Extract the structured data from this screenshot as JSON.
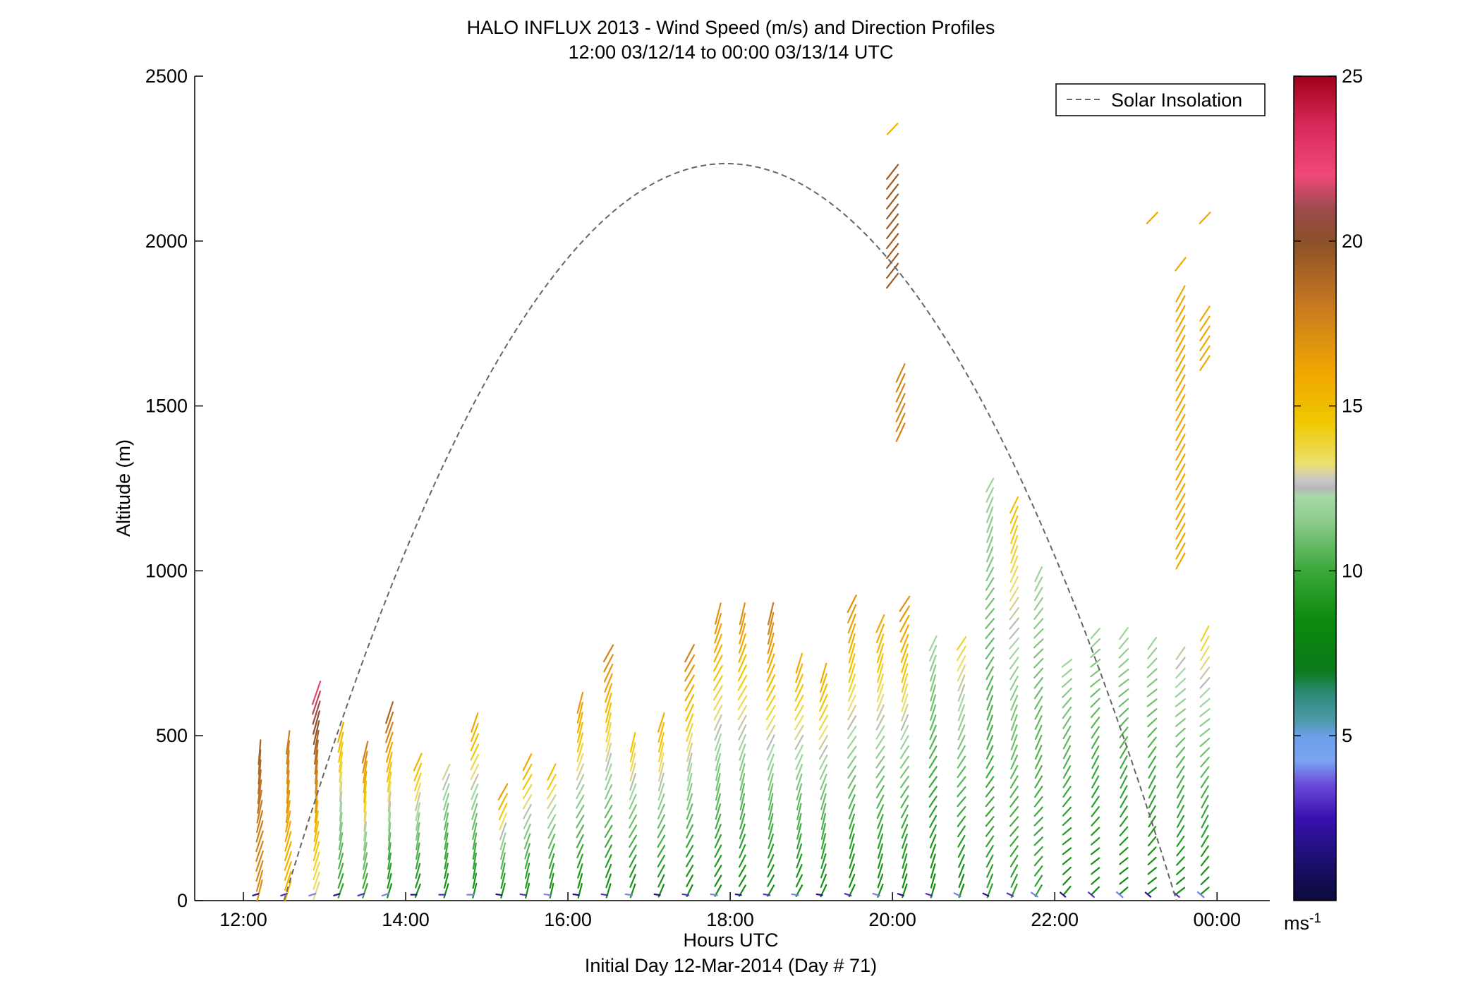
{
  "chart_data": {
    "type": "scatter",
    "title": "HALO INFLUX 2013 - Wind Speed (m/s) and Direction Profiles",
    "subtitle": "12:00 03/12/14 to 00:00 03/13/14  UTC",
    "xlabel": "Hours UTC",
    "xlabel_sub": "Initial Day 12-Mar-2014 (Day # 71)",
    "ylabel": "Altitude (m)",
    "xlim": [
      11.4,
      24.65
    ],
    "ylim": [
      0,
      2500
    ],
    "x_ticks": [
      12,
      14,
      16,
      18,
      20,
      22,
      24
    ],
    "x_tick_labels": [
      "12:00",
      "14:00",
      "16:00",
      "18:00",
      "20:00",
      "22:00",
      "00:00"
    ],
    "y_ticks": [
      0,
      500,
      1000,
      1500,
      2000,
      2500
    ],
    "y_tick_labels": [
      "0",
      "500",
      "1000",
      "1500",
      "2000",
      "2500"
    ],
    "legend": {
      "entry": "Solar Insolation",
      "position": "top-right"
    },
    "solar_insolation": {
      "rise_hour": 12.5,
      "set_hour": 23.5,
      "peak_hour": 17.95,
      "peak_altitude": 2235
    },
    "colorbar": {
      "min": 0,
      "max": 25,
      "ticks": [
        5,
        10,
        15,
        20,
        25
      ],
      "tick_labels": [
        "5",
        "10",
        "15",
        "20",
        "25"
      ],
      "unit": "ms",
      "unit_exp": "-1"
    },
    "wind_profiles": [
      {
        "hour": 12.2,
        "top": 450,
        "speed_low": 17,
        "speed_high": 19,
        "dir": 200
      },
      {
        "hour": 12.55,
        "top": 500,
        "speed_low": 15,
        "speed_high": 18,
        "dir": 200
      },
      {
        "hour": 12.9,
        "top": 640,
        "speed_low": 13,
        "speed_high": 22,
        "dir": 200
      },
      {
        "hour": 13.2,
        "top": 530,
        "speed_low": 9,
        "speed_high": 16,
        "dir": 200
      },
      {
        "hour": 13.5,
        "top": 460,
        "speed_low": 9,
        "speed_high": 18,
        "dir": 200
      },
      {
        "hour": 13.8,
        "top": 570,
        "speed_low": 8,
        "speed_high": 19,
        "dir": 200
      },
      {
        "hour": 14.15,
        "top": 440,
        "speed_low": 8,
        "speed_high": 16,
        "dir": 210
      },
      {
        "hour": 14.5,
        "top": 390,
        "speed_low": 8,
        "speed_high": 13,
        "dir": 210
      },
      {
        "hour": 14.85,
        "top": 540,
        "speed_low": 8,
        "speed_high": 16,
        "dir": 210
      },
      {
        "hour": 15.2,
        "top": 350,
        "speed_low": 8,
        "speed_high": 17,
        "dir": 215
      },
      {
        "hour": 15.5,
        "top": 420,
        "speed_low": 8,
        "speed_high": 16,
        "dir": 215
      },
      {
        "hour": 15.8,
        "top": 390,
        "speed_low": 8,
        "speed_high": 15,
        "dir": 215
      },
      {
        "hour": 16.15,
        "top": 620,
        "speed_low": 8,
        "speed_high": 17,
        "dir": 215
      },
      {
        "hour": 16.5,
        "top": 770,
        "speed_low": 8,
        "speed_high": 18,
        "dir": 215
      },
      {
        "hour": 16.8,
        "top": 500,
        "speed_low": 8,
        "speed_high": 15,
        "dir": 215
      },
      {
        "hour": 17.15,
        "top": 560,
        "speed_low": 8,
        "speed_high": 16,
        "dir": 215
      },
      {
        "hour": 17.5,
        "top": 770,
        "speed_low": 8,
        "speed_high": 18,
        "dir": 215
      },
      {
        "hour": 17.85,
        "top": 870,
        "speed_low": 8,
        "speed_high": 17,
        "dir": 215
      },
      {
        "hour": 18.15,
        "top": 870,
        "speed_low": 8,
        "speed_high": 17,
        "dir": 215
      },
      {
        "hour": 18.5,
        "top": 870,
        "speed_low": 8,
        "speed_high": 18,
        "dir": 215
      },
      {
        "hour": 18.85,
        "top": 730,
        "speed_low": 8,
        "speed_high": 16,
        "dir": 215
      },
      {
        "hour": 19.15,
        "top": 700,
        "speed_low": 8,
        "speed_high": 16,
        "dir": 215
      },
      {
        "hour": 19.5,
        "top": 900,
        "speed_low": 8,
        "speed_high": 17,
        "dir": 220
      },
      {
        "hour": 19.85,
        "top": 840,
        "speed_low": 8,
        "speed_high": 16,
        "dir": 220
      },
      {
        "hour": 20.15,
        "top": 900,
        "speed_low": 8,
        "speed_high": 17,
        "dir": 220
      },
      {
        "hour": 20.5,
        "top": 780,
        "speed_low": 8,
        "speed_high": 12,
        "dir": 220
      },
      {
        "hour": 20.85,
        "top": 780,
        "speed_low": 8,
        "speed_high": 14,
        "dir": 225
      },
      {
        "hour": 21.2,
        "top": 1280,
        "speed_low": 9,
        "speed_high": 12,
        "dir": 225
      },
      {
        "hour": 21.5,
        "top": 1220,
        "speed_low": 9,
        "speed_high": 15,
        "dir": 225
      },
      {
        "hour": 21.8,
        "top": 990,
        "speed_low": 9,
        "speed_high": 12,
        "dir": 230
      },
      {
        "hour": 22.15,
        "top": 720,
        "speed_low": 8,
        "speed_high": 12,
        "dir": 235
      },
      {
        "hour": 22.5,
        "top": 830,
        "speed_low": 8,
        "speed_high": 12,
        "dir": 235
      },
      {
        "hour": 22.85,
        "top": 810,
        "speed_low": 8,
        "speed_high": 12,
        "dir": 235
      },
      {
        "hour": 23.2,
        "top": 790,
        "speed_low": 8,
        "speed_high": 12,
        "dir": 235
      },
      {
        "hour": 23.55,
        "top": 770,
        "speed_low": 8,
        "speed_high": 13,
        "dir": 235
      },
      {
        "hour": 23.85,
        "top": 810,
        "speed_low": 8,
        "speed_high": 14,
        "dir": 235
      }
    ],
    "wind_upper": [
      {
        "hour": 20.0,
        "bottom": 1880,
        "top": 2220,
        "speed": 19.5,
        "dir": 235
      },
      {
        "hour": 20.0,
        "bottom": 2340,
        "top": 2340,
        "speed": 15.5,
        "dir": 240
      },
      {
        "hour": 20.1,
        "bottom": 1420,
        "top": 1600,
        "speed": 17.5,
        "dir": 220
      },
      {
        "hour": 23.55,
        "bottom": 1030,
        "top": 1860,
        "speed": 16,
        "dir": 225
      },
      {
        "hour": 23.85,
        "bottom": 1630,
        "top": 1800,
        "speed": 16,
        "dir": 230
      },
      {
        "hour": 23.55,
        "bottom": 1930,
        "top": 1930,
        "speed": 16,
        "dir": 235
      },
      {
        "hour": 23.2,
        "bottom": 2070,
        "top": 2070,
        "speed": 16,
        "dir": 240
      },
      {
        "hour": 23.85,
        "bottom": 2070,
        "top": 2070,
        "speed": 16,
        "dir": 240
      }
    ]
  }
}
